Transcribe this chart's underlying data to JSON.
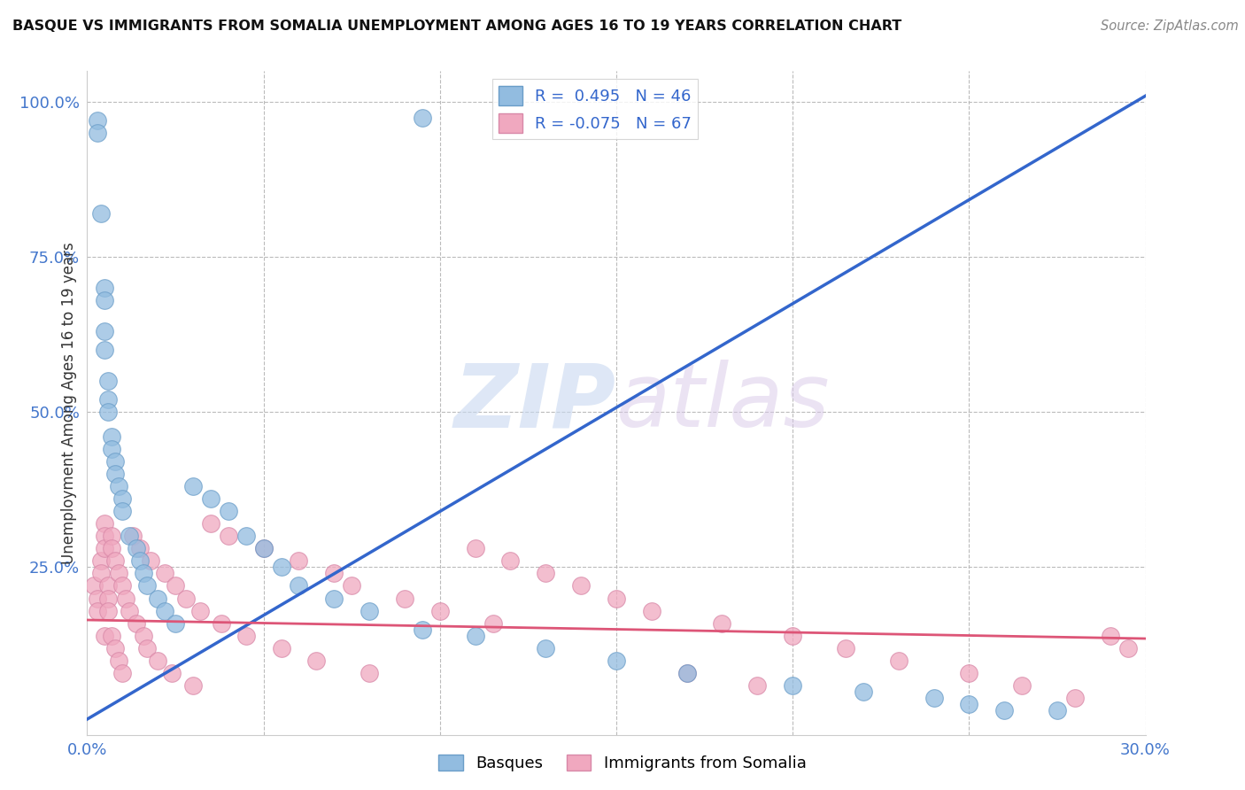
{
  "title": "BASQUE VS IMMIGRANTS FROM SOMALIA UNEMPLOYMENT AMONG AGES 16 TO 19 YEARS CORRELATION CHART",
  "source": "Source: ZipAtlas.com",
  "ylabel": "Unemployment Among Ages 16 to 19 years",
  "legend1_r": "0.495",
  "legend1_n": "46",
  "legend2_r": "-0.075",
  "legend2_n": "67",
  "watermark_zip": "ZIP",
  "watermark_atlas": "atlas",
  "basque_color": "#92bce0",
  "basque_edge": "#6a9dc8",
  "somalia_color": "#f0a8bf",
  "somalia_edge": "#d888a8",
  "blue_line_color": "#3366cc",
  "pink_line_color": "#dd5577",
  "xmin": 0.0,
  "xmax": 0.3,
  "ymin": -0.02,
  "ymax": 1.05,
  "blue_line_x": [
    0.0,
    0.3
  ],
  "blue_line_y": [
    0.005,
    1.01
  ],
  "pink_line_x": [
    0.0,
    0.3
  ],
  "pink_line_y": [
    0.165,
    0.135
  ],
  "basque_x": [
    0.003,
    0.003,
    0.004,
    0.005,
    0.005,
    0.005,
    0.005,
    0.006,
    0.006,
    0.006,
    0.007,
    0.007,
    0.008,
    0.008,
    0.009,
    0.01,
    0.01,
    0.012,
    0.014,
    0.015,
    0.016,
    0.017,
    0.02,
    0.022,
    0.025,
    0.03,
    0.035,
    0.04,
    0.045,
    0.05,
    0.055,
    0.06,
    0.07,
    0.08,
    0.095,
    0.11,
    0.13,
    0.15,
    0.17,
    0.2,
    0.22,
    0.24,
    0.25,
    0.26,
    0.275,
    0.095
  ],
  "basque_y": [
    0.97,
    0.95,
    0.82,
    0.7,
    0.68,
    0.63,
    0.6,
    0.55,
    0.52,
    0.5,
    0.46,
    0.44,
    0.42,
    0.4,
    0.38,
    0.36,
    0.34,
    0.3,
    0.28,
    0.26,
    0.24,
    0.22,
    0.2,
    0.18,
    0.16,
    0.38,
    0.36,
    0.34,
    0.3,
    0.28,
    0.25,
    0.22,
    0.2,
    0.18,
    0.15,
    0.14,
    0.12,
    0.1,
    0.08,
    0.06,
    0.05,
    0.04,
    0.03,
    0.02,
    0.02,
    0.975
  ],
  "somalia_x": [
    0.002,
    0.003,
    0.003,
    0.004,
    0.004,
    0.005,
    0.005,
    0.005,
    0.005,
    0.006,
    0.006,
    0.006,
    0.007,
    0.007,
    0.007,
    0.008,
    0.008,
    0.009,
    0.009,
    0.01,
    0.01,
    0.011,
    0.012,
    0.013,
    0.014,
    0.015,
    0.016,
    0.017,
    0.018,
    0.02,
    0.022,
    0.024,
    0.025,
    0.028,
    0.03,
    0.032,
    0.035,
    0.038,
    0.04,
    0.045,
    0.05,
    0.055,
    0.06,
    0.065,
    0.07,
    0.075,
    0.08,
    0.09,
    0.1,
    0.11,
    0.115,
    0.12,
    0.13,
    0.14,
    0.15,
    0.16,
    0.17,
    0.18,
    0.19,
    0.2,
    0.215,
    0.23,
    0.25,
    0.265,
    0.28,
    0.29,
    0.295
  ],
  "somalia_y": [
    0.22,
    0.2,
    0.18,
    0.26,
    0.24,
    0.32,
    0.3,
    0.28,
    0.14,
    0.22,
    0.2,
    0.18,
    0.3,
    0.28,
    0.14,
    0.26,
    0.12,
    0.24,
    0.1,
    0.22,
    0.08,
    0.2,
    0.18,
    0.3,
    0.16,
    0.28,
    0.14,
    0.12,
    0.26,
    0.1,
    0.24,
    0.08,
    0.22,
    0.2,
    0.06,
    0.18,
    0.32,
    0.16,
    0.3,
    0.14,
    0.28,
    0.12,
    0.26,
    0.1,
    0.24,
    0.22,
    0.08,
    0.2,
    0.18,
    0.28,
    0.16,
    0.26,
    0.24,
    0.22,
    0.2,
    0.18,
    0.08,
    0.16,
    0.06,
    0.14,
    0.12,
    0.1,
    0.08,
    0.06,
    0.04,
    0.14,
    0.12
  ]
}
